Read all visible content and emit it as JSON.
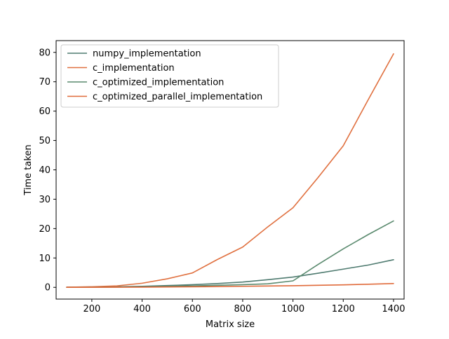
{
  "chart_data": {
    "type": "line",
    "title": "",
    "xlabel": "Matrix size",
    "ylabel": "Time taken",
    "xlim": [
      58,
      1442
    ],
    "ylim": [
      -4,
      84
    ],
    "xticks": [
      200,
      400,
      600,
      800,
      1000,
      1200,
      1400
    ],
    "yticks": [
      0,
      10,
      20,
      30,
      40,
      50,
      60,
      70,
      80
    ],
    "grid": false,
    "legend_position": "top-left",
    "series": [
      {
        "name": "numpy_implementation",
        "color": "#4f7b70",
        "x": [
          100,
          200,
          300,
          400,
          500,
          600,
          700,
          800,
          900,
          1000,
          1100,
          1200,
          1300,
          1400
        ],
        "y": [
          0.05,
          0.1,
          0.2,
          0.35,
          0.6,
          0.9,
          1.3,
          1.8,
          2.6,
          3.5,
          4.8,
          6.2,
          7.6,
          9.4
        ]
      },
      {
        "name": "c_implementation",
        "color": "#e0703f",
        "x": [
          100,
          200,
          300,
          400,
          500,
          600,
          700,
          800,
          900,
          1000,
          1100,
          1200,
          1300,
          1400
        ],
        "y": [
          0.05,
          0.2,
          0.5,
          1.4,
          2.9,
          4.9,
          9.5,
          13.7,
          20.6,
          27.1,
          37.4,
          48.2,
          64.0,
          79.5
        ]
      },
      {
        "name": "c_optimized_implementation",
        "color": "#5a8a6e",
        "x": [
          100,
          200,
          300,
          400,
          500,
          600,
          700,
          800,
          900,
          1000,
          1100,
          1200,
          1300,
          1400
        ],
        "y": [
          0.01,
          0.05,
          0.1,
          0.2,
          0.35,
          0.5,
          0.7,
          0.9,
          1.2,
          2.2,
          7.8,
          13.1,
          18.0,
          22.6
        ]
      },
      {
        "name": "c_optimized_parallel_implementation",
        "color": "#e06a3a",
        "x": [
          100,
          200,
          300,
          400,
          500,
          600,
          700,
          800,
          900,
          1000,
          1100,
          1200,
          1300,
          1400
        ],
        "y": [
          0.01,
          0.02,
          0.05,
          0.08,
          0.12,
          0.18,
          0.25,
          0.35,
          0.45,
          0.55,
          0.7,
          0.85,
          1.05,
          1.3
        ]
      }
    ]
  }
}
